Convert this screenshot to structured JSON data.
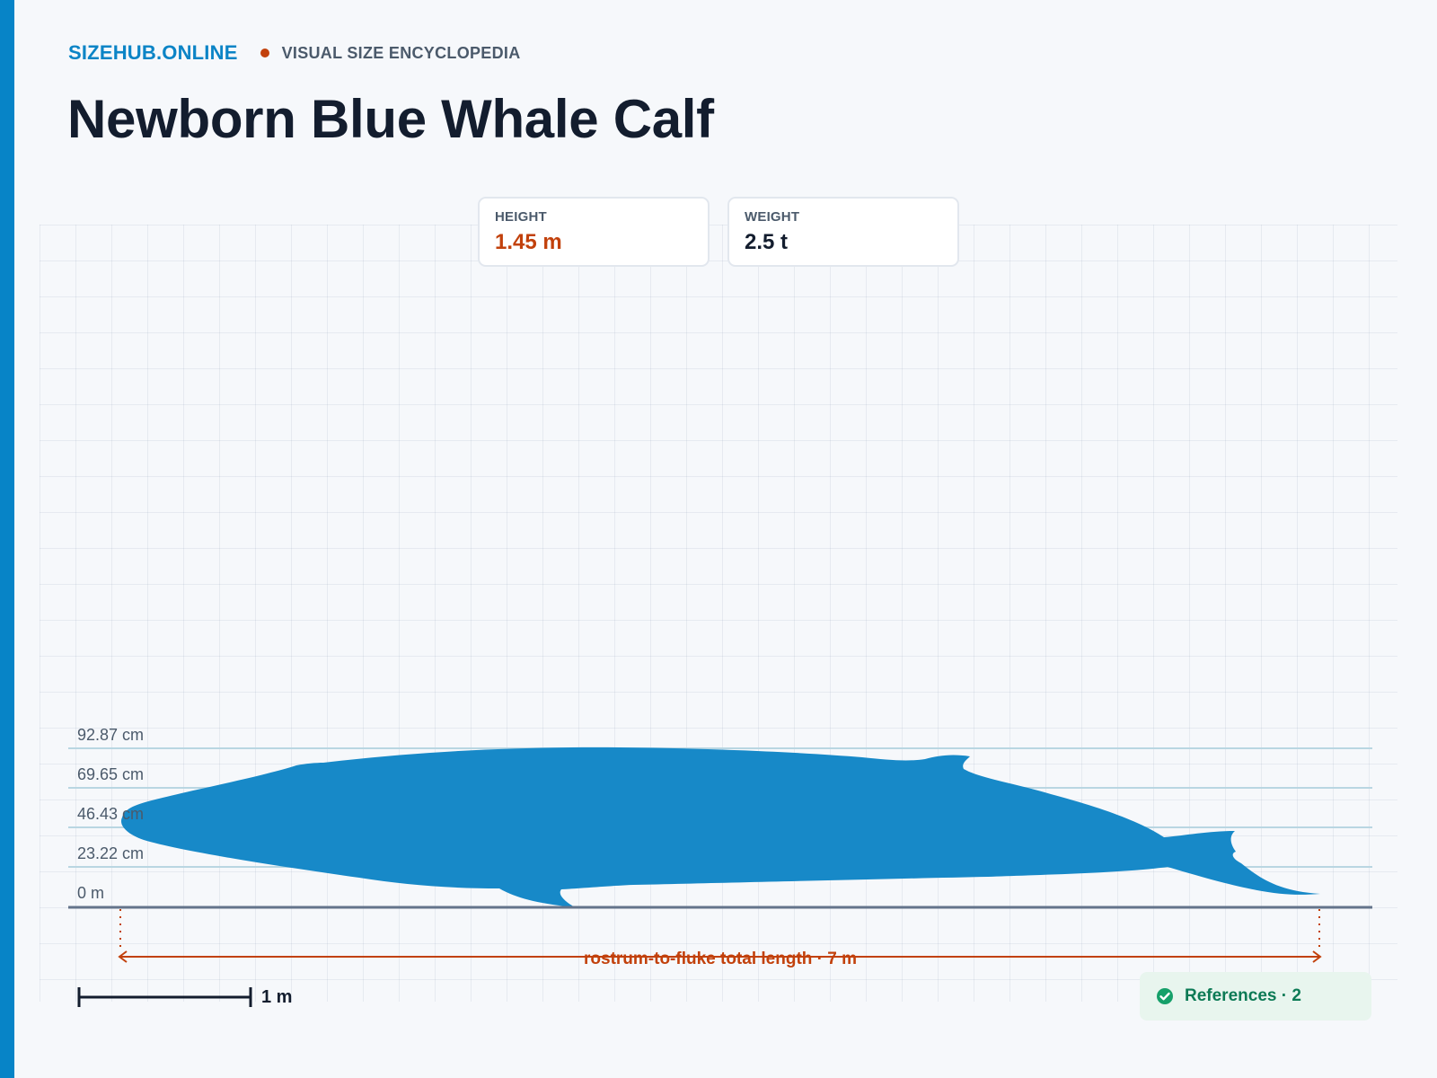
{
  "brand": {
    "site": "SIZEHUB.ONLINE",
    "tagline": "VISUAL SIZE ENCYCLOPEDIA"
  },
  "title": "Newborn Blue Whale Calf",
  "stats": [
    {
      "label": "HEIGHT",
      "value": "1.45 m",
      "color": "#c2410c"
    },
    {
      "label": "WEIGHT",
      "value": "2.5 t",
      "color": "#131d2e"
    }
  ],
  "y_axis": {
    "ticks": [
      "92.87 cm",
      "69.65 cm",
      "46.43 cm",
      "23.22 cm",
      "0 m"
    ]
  },
  "dimension": {
    "label": "rostrum-to-fluke total length · 7 m"
  },
  "scale_bar": {
    "label": "1 m"
  },
  "references": {
    "label": "References · 2",
    "icon": "check-circle-icon"
  },
  "colors": {
    "accent": "#0784c7",
    "silhouette": "#1789c8",
    "measure": "#c2410c",
    "success": "#0c7a55"
  }
}
